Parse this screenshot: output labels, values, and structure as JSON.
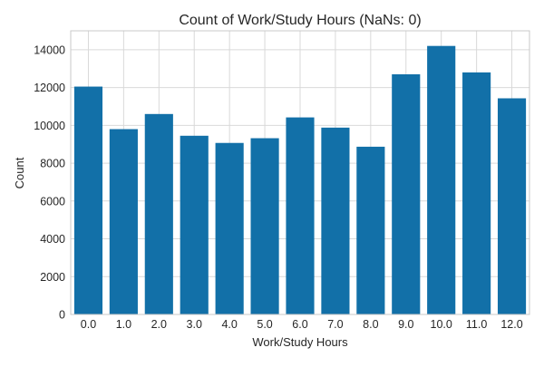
{
  "chart_data": {
    "type": "bar",
    "title": "Count of Work/Study Hours (NaNs: 0)",
    "xlabel": "Work/Study Hours",
    "ylabel": "Count",
    "categories": [
      "0.0",
      "1.0",
      "2.0",
      "3.0",
      "4.0",
      "5.0",
      "6.0",
      "7.0",
      "8.0",
      "9.0",
      "10.0",
      "11.0",
      "12.0"
    ],
    "values": [
      12050,
      9800,
      10600,
      9450,
      9070,
      9320,
      10420,
      9880,
      8870,
      12700,
      14200,
      12800,
      11430
    ],
    "ylim": [
      0,
      15000
    ],
    "yticks": [
      0,
      2000,
      4000,
      6000,
      8000,
      10000,
      12000,
      14000
    ],
    "ytick_labels": [
      "0",
      "2000",
      "4000",
      "6000",
      "8000",
      "10000",
      "12000",
      "14000"
    ],
    "grid": true,
    "bar_color": "#1270a8",
    "grid_color": "#d9d9d9",
    "axes_edge_color": "#c9c9c9"
  }
}
